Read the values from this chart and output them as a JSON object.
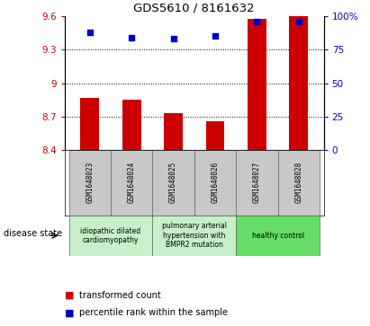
{
  "title": "GDS5610 / 8161632",
  "samples": [
    "GSM1648023",
    "GSM1648024",
    "GSM1648025",
    "GSM1648026",
    "GSM1648027",
    "GSM1648028"
  ],
  "transformed_counts": [
    8.87,
    8.85,
    8.73,
    8.66,
    9.58,
    9.6
  ],
  "percentile_ranks": [
    88,
    84,
    83,
    85,
    96,
    96
  ],
  "ylim_left": [
    8.4,
    9.6
  ],
  "ylim_right": [
    0,
    100
  ],
  "yticks_left": [
    8.4,
    8.7,
    9.0,
    9.3,
    9.6
  ],
  "yticks_right": [
    0,
    25,
    50,
    75,
    100
  ],
  "ytick_labels_left": [
    "8.4",
    "8.7",
    "9",
    "9.3",
    "9.6"
  ],
  "ytick_labels_right": [
    "0",
    "25",
    "50",
    "75",
    "100%"
  ],
  "bar_color": "#cc0000",
  "dot_color": "#0000cc",
  "disease_groups": [
    {
      "label": "idiopathic dilated\ncardiomyopathy",
      "start": 0,
      "end": 2,
      "color": "#c8f0c8"
    },
    {
      "label": "pulmonary arterial\nhypertension with\nBMPR2 mutation",
      "start": 2,
      "end": 4,
      "color": "#c8f0c8"
    },
    {
      "label": "healthy control",
      "start": 4,
      "end": 6,
      "color": "#66dd66"
    }
  ],
  "legend_bar_label": "transformed count",
  "legend_dot_label": "percentile rank within the sample",
  "disease_state_label": "disease state",
  "bar_width": 0.45,
  "sample_box_color": "#c8c8c8",
  "background_color": "#ffffff",
  "tick_color_left": "#cc0000",
  "tick_color_right": "#0000cc"
}
